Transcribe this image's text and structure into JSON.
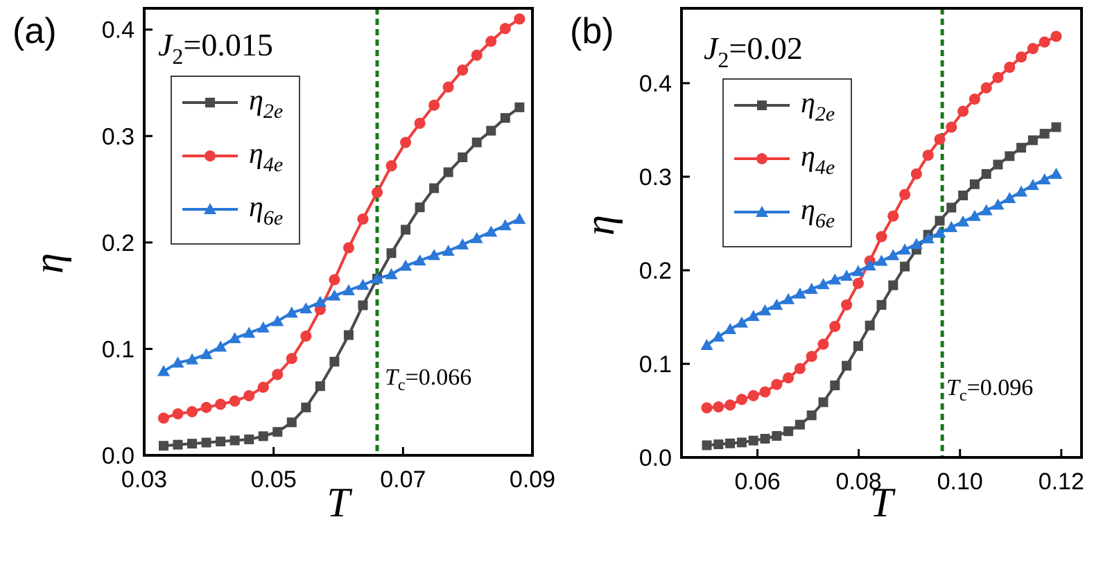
{
  "chart_data": [
    {
      "type": "line",
      "panel_label": "(a)",
      "annotation": {
        "param_symbol": "J",
        "param_sub": "2",
        "param_text": "=0.015"
      },
      "xlabel": "T",
      "ylabel": "η",
      "xlim": [
        0.03,
        0.09
      ],
      "ylim": [
        0.0,
        0.42
      ],
      "xticks": [
        0.03,
        0.05,
        0.07,
        0.09
      ],
      "xtick_labels": [
        "0.03",
        "0.05",
        "0.07",
        "0.09"
      ],
      "yticks": [
        0.0,
        0.1,
        0.2,
        0.3,
        0.4
      ],
      "ytick_labels": [
        "0.0",
        "0.1",
        "0.2",
        "0.3",
        "0.4"
      ],
      "tc": {
        "value": 0.066,
        "label_T": "T",
        "label_sub": "c",
        "label_text": "=0.066"
      },
      "x": [
        0.033,
        0.0352,
        0.0374,
        0.0396,
        0.0418,
        0.044,
        0.0462,
        0.0484,
        0.0506,
        0.0528,
        0.055,
        0.0572,
        0.0594,
        0.0616,
        0.0638,
        0.066,
        0.0682,
        0.0704,
        0.0726,
        0.0748,
        0.077,
        0.0792,
        0.0814,
        0.0836,
        0.0858,
        0.088
      ],
      "series": [
        {
          "name": "η2e",
          "base": "η",
          "sub": "2e",
          "color": "#4a4a4a",
          "marker": "square",
          "values": [
            0.009,
            0.01,
            0.011,
            0.012,
            0.013,
            0.014,
            0.015,
            0.018,
            0.022,
            0.031,
            0.045,
            0.065,
            0.088,
            0.113,
            0.141,
            0.166,
            0.19,
            0.212,
            0.233,
            0.251,
            0.266,
            0.28,
            0.294,
            0.305,
            0.317,
            0.327
          ]
        },
        {
          "name": "η4e",
          "base": "η",
          "sub": "4e",
          "color": "#ee3e3e",
          "marker": "circle",
          "values": [
            0.035,
            0.039,
            0.041,
            0.045,
            0.048,
            0.051,
            0.056,
            0.064,
            0.076,
            0.091,
            0.112,
            0.137,
            0.165,
            0.195,
            0.222,
            0.247,
            0.272,
            0.294,
            0.312,
            0.329,
            0.346,
            0.362,
            0.376,
            0.389,
            0.401,
            0.41
          ]
        },
        {
          "name": "η6e",
          "base": "η",
          "sub": "6e",
          "color": "#2a78d8",
          "marker": "triangle",
          "values": [
            0.079,
            0.087,
            0.09,
            0.095,
            0.102,
            0.11,
            0.115,
            0.12,
            0.126,
            0.134,
            0.138,
            0.144,
            0.15,
            0.155,
            0.16,
            0.166,
            0.17,
            0.178,
            0.183,
            0.188,
            0.192,
            0.198,
            0.204,
            0.21,
            0.216,
            0.222
          ]
        }
      ]
    },
    {
      "type": "line",
      "panel_label": "(b)",
      "annotation": {
        "param_symbol": "J",
        "param_sub": "2",
        "param_text": "=0.02"
      },
      "xlabel": "T",
      "ylabel": "η",
      "xlim": [
        0.045,
        0.124
      ],
      "ylim": [
        0.0,
        0.48
      ],
      "xticks": [
        0.06,
        0.08,
        0.1,
        0.12
      ],
      "xtick_labels": [
        "0.06",
        "0.08",
        "0.10",
        "0.12"
      ],
      "yticks": [
        0.0,
        0.1,
        0.2,
        0.3,
        0.4
      ],
      "ytick_labels": [
        "0.0",
        "0.1",
        "0.2",
        "0.3",
        "0.4"
      ],
      "tc": {
        "value": 0.0965,
        "label_T": "T",
        "label_sub": "c",
        "label_text": "=0.096"
      },
      "x": [
        0.05,
        0.0523,
        0.0546,
        0.0569,
        0.0592,
        0.0615,
        0.0638,
        0.0661,
        0.0684,
        0.0707,
        0.073,
        0.0753,
        0.0776,
        0.0799,
        0.0822,
        0.0845,
        0.0868,
        0.0891,
        0.0914,
        0.0937,
        0.096,
        0.0983,
        0.1006,
        0.1029,
        0.1052,
        0.1075,
        0.1098,
        0.1121,
        0.1144,
        0.1167,
        0.119
      ],
      "series": [
        {
          "name": "η2e",
          "base": "η",
          "sub": "2e",
          "color": "#4a4a4a",
          "marker": "square",
          "values": [
            0.013,
            0.014,
            0.015,
            0.016,
            0.018,
            0.02,
            0.023,
            0.028,
            0.035,
            0.045,
            0.059,
            0.077,
            0.098,
            0.119,
            0.141,
            0.163,
            0.184,
            0.204,
            0.222,
            0.238,
            0.253,
            0.267,
            0.28,
            0.292,
            0.303,
            0.313,
            0.322,
            0.331,
            0.339,
            0.346,
            0.353
          ]
        },
        {
          "name": "η4e",
          "base": "η",
          "sub": "4e",
          "color": "#ee3e3e",
          "marker": "circle",
          "values": [
            0.053,
            0.054,
            0.056,
            0.062,
            0.066,
            0.07,
            0.078,
            0.085,
            0.095,
            0.108,
            0.121,
            0.14,
            0.163,
            0.186,
            0.21,
            0.236,
            0.258,
            0.281,
            0.303,
            0.323,
            0.34,
            0.353,
            0.37,
            0.383,
            0.395,
            0.406,
            0.417,
            0.428,
            0.437,
            0.444,
            0.45
          ]
        },
        {
          "name": "η6e",
          "base": "η",
          "sub": "6e",
          "color": "#2a78d8",
          "marker": "triangle",
          "values": [
            0.12,
            0.129,
            0.137,
            0.144,
            0.151,
            0.157,
            0.163,
            0.169,
            0.175,
            0.18,
            0.185,
            0.19,
            0.194,
            0.199,
            0.205,
            0.21,
            0.216,
            0.222,
            0.228,
            0.234,
            0.24,
            0.246,
            0.252,
            0.258,
            0.264,
            0.27,
            0.277,
            0.284,
            0.291,
            0.297,
            0.303
          ]
        }
      ]
    }
  ]
}
